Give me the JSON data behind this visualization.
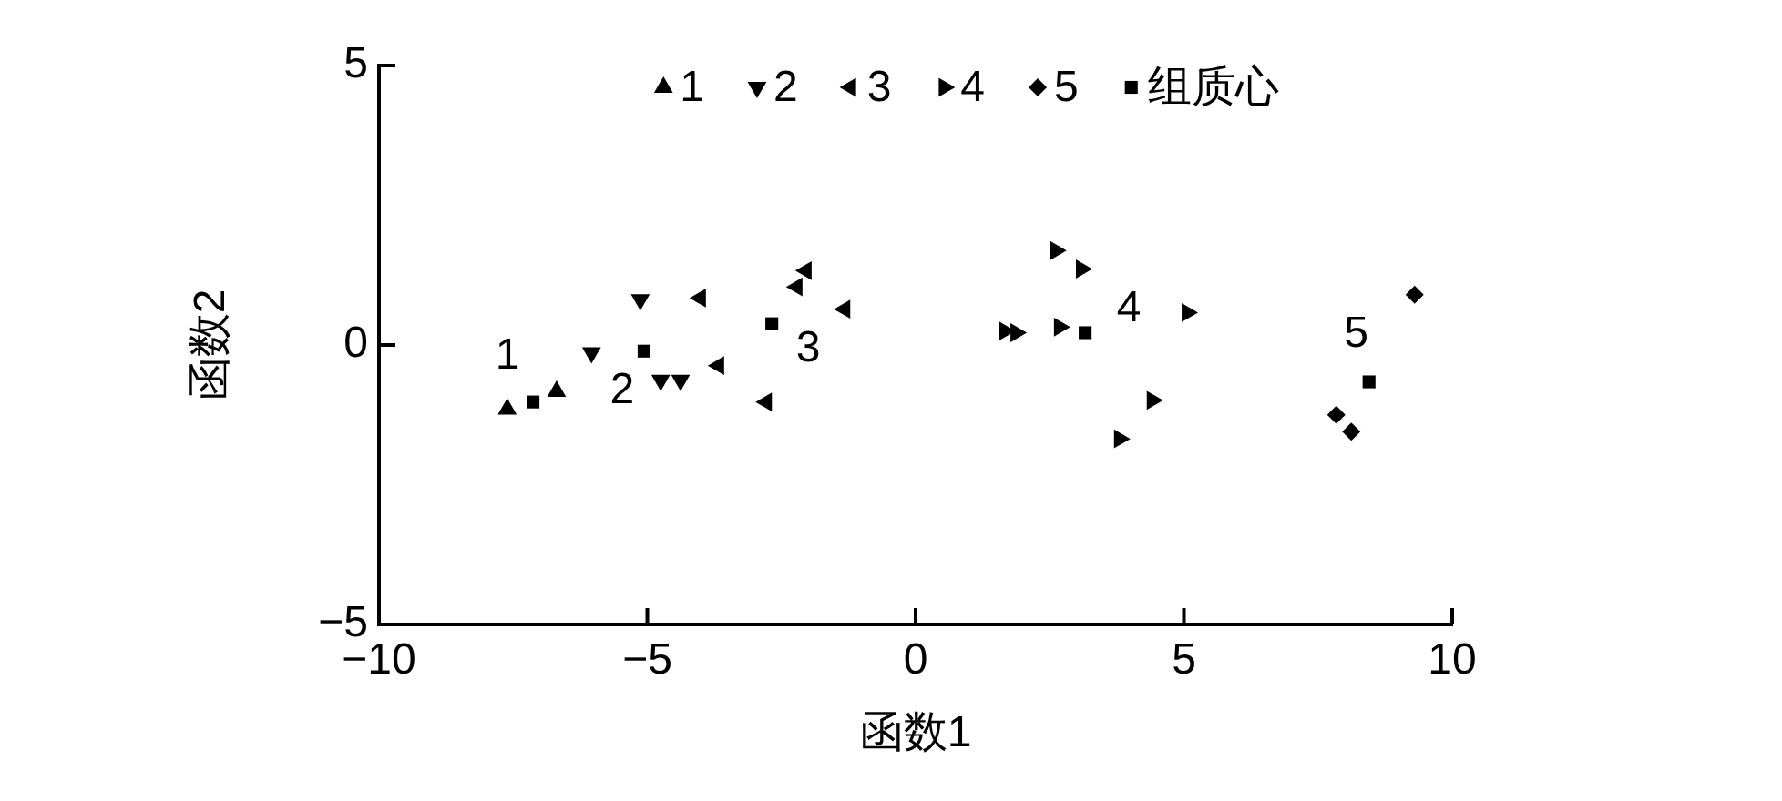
{
  "chart_data": {
    "type": "scatter",
    "xlabel": "函数1",
    "ylabel": "函数2",
    "xlim": [
      -10,
      10
    ],
    "ylim": [
      -5,
      5
    ],
    "xticks": [
      {
        "value": -10,
        "label": "−10"
      },
      {
        "value": -5,
        "label": "−5"
      },
      0,
      5,
      10
    ],
    "yticks": [
      {
        "value": -5,
        "label": "−5"
      },
      0,
      5
    ],
    "grid": false,
    "legend": "top",
    "series": [
      {
        "name": "1",
        "color": "#000000",
        "marker": "triangle",
        "x": [
          -7.61,
          -6.69
        ],
        "values": [
          -1.15,
          -0.83
        ]
      },
      {
        "name": "2",
        "color": "#000000",
        "marker": "triangle-down",
        "x": [
          -5.13,
          -6.04,
          -4.75,
          -4.38
        ],
        "values": [
          0.81,
          -0.14,
          -0.63,
          -0.63
        ]
      },
      {
        "name": "3",
        "color": "#000000",
        "marker": "triangle-left",
        "x": [
          -4.01,
          -2.04,
          -2.21,
          -1.32,
          -3.67,
          -2.78
        ],
        "values": [
          0.84,
          1.33,
          1.04,
          0.64,
          -0.37,
          -1.02
        ]
      },
      {
        "name": "4",
        "color": "#000000",
        "marker": "triangle-right",
        "x": [
          2.61,
          3.09,
          5.06,
          1.66,
          1.87,
          2.68,
          4.41,
          3.8
        ],
        "values": [
          1.69,
          1.36,
          0.58,
          0.25,
          0.22,
          0.32,
          -0.99,
          -1.68
        ]
      },
      {
        "name": "5",
        "color": "#000000",
        "marker": "diamond",
        "x": [
          9.3,
          7.84,
          8.12
        ],
        "values": [
          0.9,
          -1.25,
          -1.55
        ]
      },
      {
        "name": "组质心",
        "color": "#000000",
        "marker": "square",
        "x": [
          -7.13,
          -5.06,
          -2.68,
          3.16,
          8.45
        ],
        "values": [
          -1.02,
          -0.11,
          0.38,
          0.22,
          -0.66
        ]
      }
    ],
    "annotations": [
      "1",
      "2",
      "3",
      "4",
      "5"
    ]
  }
}
